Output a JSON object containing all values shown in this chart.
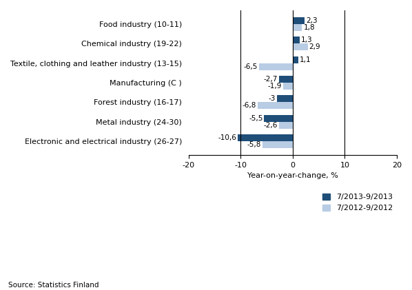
{
  "categories": [
    "Electronic and electrical\nindustry (26-27)",
    "Metal industry (24-30)",
    "Forest industry (16-17)",
    "Manufacturing (C )",
    "Textile, clothing and leather\nindustry (13-15)",
    "Chemical industry (19-22)",
    "Food industry (10-11)"
  ],
  "ytick_labels": [
    "Electronic and electrical industry (26-27)",
    "Metal industry (24-30)",
    "Forest industry (16-17)",
    "Manufacturing (C )",
    "Textile, clothing and leather industry (13-15)",
    "Chemical industry (19-22)",
    "Food industry (10-11)"
  ],
  "series_2013": [
    -10.6,
    -5.5,
    -3.0,
    -2.7,
    1.1,
    1.3,
    2.3
  ],
  "series_2012": [
    -5.8,
    -2.6,
    -6.8,
    -1.9,
    -6.5,
    2.9,
    1.8
  ],
  "color_2013": "#1F4E79",
  "color_2012": "#B8CCE4",
  "xlabel": "Year-on-year-change, %",
  "xlim": [
    -20,
    20
  ],
  "xticks": [
    -20,
    -10,
    0,
    10,
    20
  ],
  "legend_2013": "7/2013-9/2013",
  "legend_2012": "7/2012-9/2012",
  "source_text": "Source: Statistics Finland",
  "bar_height": 0.35,
  "label_fontsize": 8,
  "tick_fontsize": 8,
  "annotation_fontsize": 7.5
}
